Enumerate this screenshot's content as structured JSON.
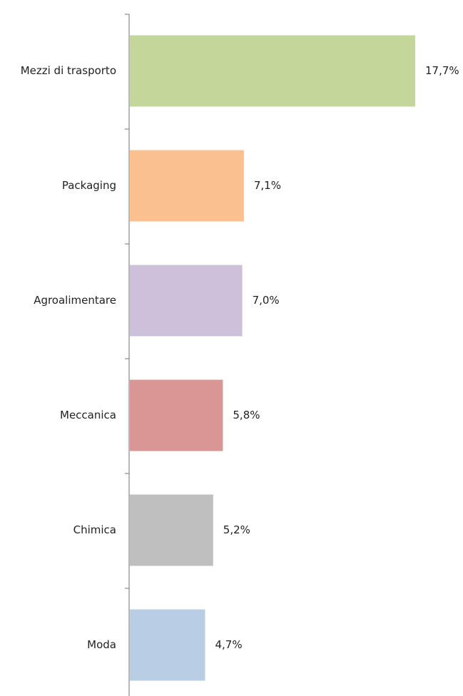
{
  "chart_data": {
    "type": "bar",
    "orientation": "horizontal",
    "categories": [
      "Mezzi di trasporto",
      "Packaging",
      "Agroalimentare",
      "Meccanica",
      "Chimica",
      "Moda"
    ],
    "values": [
      17.7,
      7.1,
      7.0,
      5.8,
      5.2,
      4.7
    ],
    "value_labels": [
      "17,7%",
      "7,1%",
      "7,0%",
      "5,8%",
      "5,2%",
      "4,7%"
    ],
    "colors": [
      "#c4d79b",
      "#fac090",
      "#ccc0da",
      "#d99694",
      "#bfbfbf",
      "#b9cde5"
    ]
  }
}
